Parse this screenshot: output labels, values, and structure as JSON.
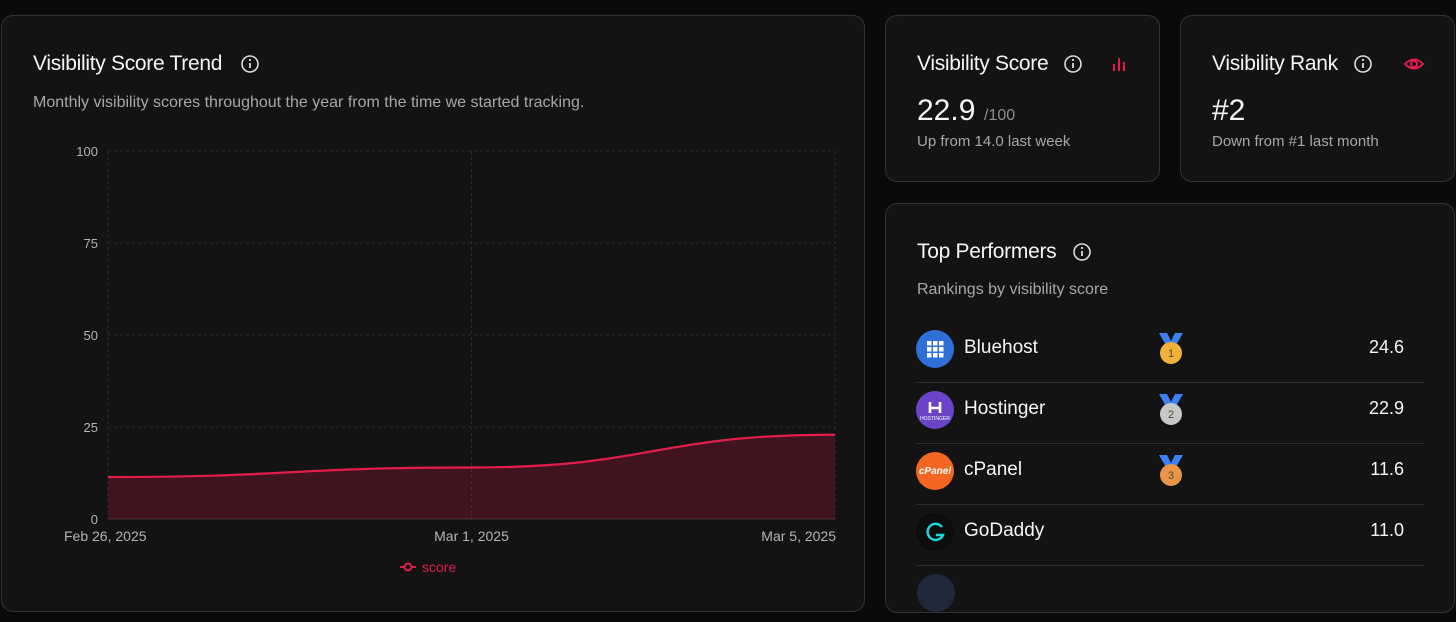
{
  "chart_data": {
    "type": "area",
    "title": "Visibility Score Trend",
    "subtitle": "Monthly visibility scores throughout the year from the time we started tracking.",
    "categories": [
      "Feb 26, 2025",
      "Mar 1, 2025",
      "Mar 5, 2025"
    ],
    "series": [
      {
        "name": "score",
        "color": "#e11d48",
        "values": [
          11.4,
          14.0,
          22.9
        ]
      }
    ],
    "ylim": [
      0,
      100
    ],
    "yticks": [
      0,
      25,
      50,
      75,
      100
    ],
    "grid": true
  },
  "score_card": {
    "title": "Visibility Score",
    "value": "22.9",
    "unit": "/100",
    "note": "Up from 14.0 last week"
  },
  "rank_card": {
    "title": "Visibility Rank",
    "value": "#2",
    "note": "Down from #1 last month"
  },
  "top_performers": {
    "title": "Top Performers",
    "subtitle": "Rankings by visibility score",
    "rows": [
      {
        "name": "Bluehost",
        "rank": "1",
        "score": "24.6"
      },
      {
        "name": "Hostinger",
        "rank": "2",
        "score": "22.9"
      },
      {
        "name": "cPanel",
        "rank": "3",
        "score": "11.6"
      },
      {
        "name": "GoDaddy",
        "score": "11.0"
      }
    ]
  }
}
